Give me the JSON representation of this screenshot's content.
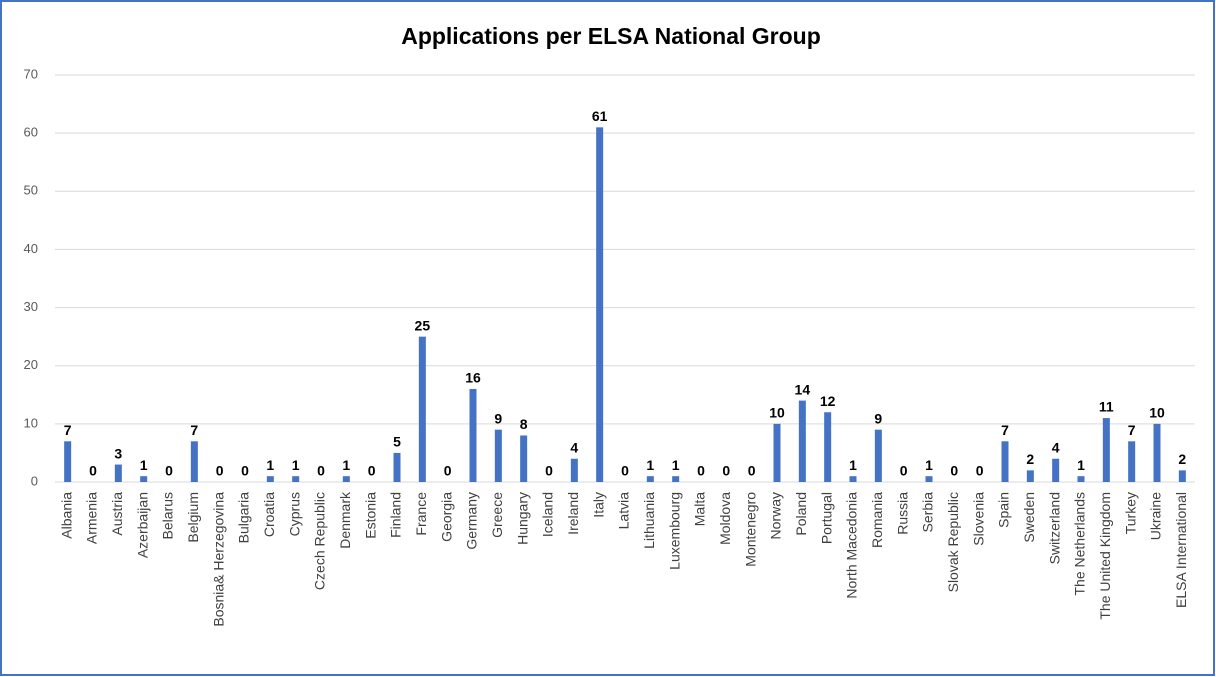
{
  "chart_data": {
    "type": "bar",
    "title": "Applications per ELSA National Group",
    "categories": [
      "Albania",
      "Armenia",
      "Austria",
      "Azerbaijan",
      "Belarus",
      "Belgium",
      "Bosnia& Herzegovina",
      "Bulgaria",
      "Croatia",
      "Cyprus",
      "Czech Republic",
      "Denmark",
      "Estonia",
      "Finland",
      "France",
      "Georgia",
      "Germany",
      "Greece",
      "Hungary",
      "Iceland",
      "Ireland",
      "Italy",
      "Latvia",
      "Lithuania",
      "Luxembourg",
      "Malta",
      "Moldova",
      "Montenegro",
      "Norway",
      "Poland",
      "Portugal",
      "North Macedonia",
      "Romania",
      "Russia",
      "Serbia",
      "Slovak Republic",
      "Slovenia",
      "Spain",
      "Sweden",
      "Switzerland",
      "The Netherlands",
      "The United Kingdom",
      "Turkey",
      "Ukraine",
      "ELSA International"
    ],
    "values": [
      7,
      0,
      3,
      1,
      0,
      7,
      0,
      0,
      1,
      1,
      0,
      1,
      0,
      5,
      25,
      0,
      16,
      9,
      8,
      0,
      4,
      61,
      0,
      1,
      1,
      0,
      0,
      0,
      10,
      14,
      12,
      1,
      9,
      0,
      1,
      0,
      0,
      7,
      2,
      4,
      1,
      11,
      7,
      10,
      2
    ],
    "color": "#4472c4",
    "ylim": [
      0,
      70
    ],
    "yticks": [
      0,
      10,
      20,
      30,
      40,
      50,
      60,
      70
    ],
    "grid": true
  }
}
